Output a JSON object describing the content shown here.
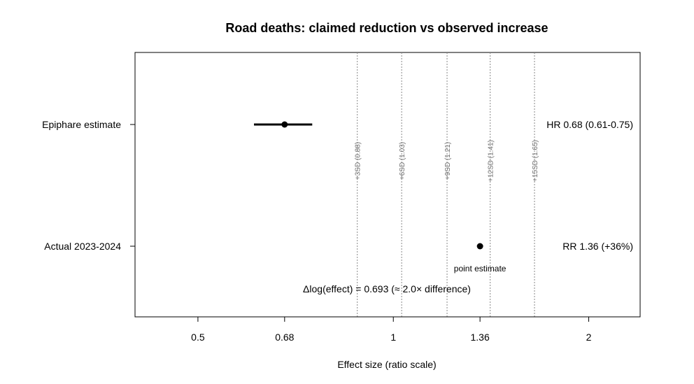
{
  "chart_data": {
    "type": "forest",
    "title": "Road deaths: claimed reduction vs observed increase",
    "xlabel": "Effect size (ratio scale)",
    "xscale": "log",
    "xlim": [
      0.4,
      2.4
    ],
    "xticks": [
      0.5,
      0.68,
      1,
      1.36,
      2
    ],
    "xtick_labels": [
      "0.5",
      "0.68",
      "1",
      "1.36",
      "2"
    ],
    "rows": [
      {
        "label": "Epiphare estimate",
        "estimate": 0.68,
        "ci_low": 0.61,
        "ci_high": 0.75,
        "right_label": "HR 0.68 (0.61-0.75)"
      },
      {
        "label": "Actual 2023-2024",
        "estimate": 1.36,
        "ci_low": null,
        "ci_high": null,
        "right_label": "RR 1.36 (+36%)",
        "note": "point estimate"
      }
    ],
    "reference_lines": [
      {
        "value": 0.88,
        "label": "+3SD (0.88)"
      },
      {
        "value": 1.03,
        "label": "+6SD (1.03)"
      },
      {
        "value": 1.21,
        "label": "+9SD (1.21)"
      },
      {
        "value": 1.41,
        "label": "+12SD (1.41)"
      },
      {
        "value": 1.65,
        "label": "+15SD (1.65)"
      }
    ],
    "annotation": "Δlog(effect) = 0.693  (≈ 2.0× difference)",
    "colors": {
      "point": "#000000",
      "reference": "#888888",
      "reference_text": "#6e6e6e"
    }
  }
}
